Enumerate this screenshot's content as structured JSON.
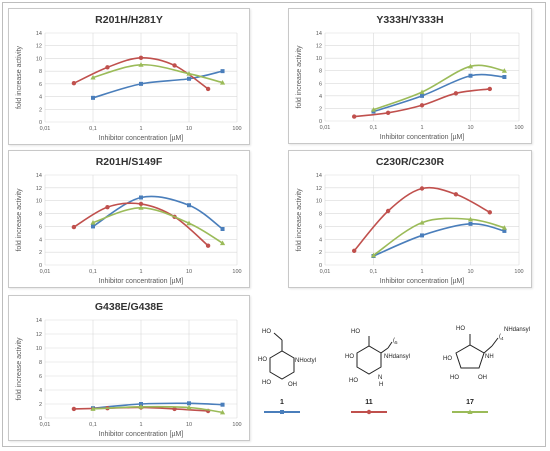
{
  "chart_data": [
    {
      "type": "line",
      "title": "R201H/H281Y",
      "xlabel": "Inhibitor concentration [µM]",
      "ylabel": "fold increase activity",
      "xscale": "log",
      "xlim": [
        0.01,
        100
      ],
      "ylim": [
        0,
        14
      ],
      "xticks": [
        "0,01",
        "0,1",
        "1",
        "10",
        "100"
      ],
      "yticks": [
        "0",
        "2",
        "4",
        "6",
        "8",
        "10",
        "12",
        "14"
      ],
      "grid": true,
      "series": [
        {
          "compound": "1",
          "color": "#4a7ebb",
          "marker": "square",
          "x": [
            0.1,
            1,
            10,
            50
          ],
          "y": [
            3.8,
            6.0,
            6.8,
            8.0
          ]
        },
        {
          "compound": "11",
          "color": "#c0504d",
          "marker": "circle",
          "x": [
            0.04,
            0.2,
            1,
            5,
            25
          ],
          "y": [
            6.1,
            8.6,
            10.1,
            8.9,
            5.2
          ]
        },
        {
          "compound": "17",
          "color": "#9bbb59",
          "marker": "triangle",
          "x": [
            0.1,
            1,
            10,
            50
          ],
          "y": [
            7.0,
            9.0,
            7.6,
            6.2
          ]
        }
      ]
    },
    {
      "type": "line",
      "title": "Y333H/Y333H",
      "xlabel": "Inhibitor concentration [µM]",
      "ylabel": "fold increase activity",
      "xscale": "log",
      "xlim": [
        0.01,
        100
      ],
      "ylim": [
        0,
        14
      ],
      "xticks": [
        "0,01",
        "0,1",
        "1",
        "10",
        "100"
      ],
      "yticks": [
        "0",
        "2",
        "4",
        "6",
        "8",
        "10",
        "12",
        "14"
      ],
      "grid": true,
      "series": [
        {
          "compound": "1",
          "color": "#4a7ebb",
          "marker": "square",
          "x": [
            0.1,
            1,
            10,
            50
          ],
          "y": [
            1.5,
            4.0,
            7.2,
            7.0
          ]
        },
        {
          "compound": "11",
          "color": "#c0504d",
          "marker": "circle",
          "x": [
            0.04,
            0.2,
            1,
            5,
            25
          ],
          "y": [
            0.7,
            1.3,
            2.5,
            4.4,
            5.1
          ]
        },
        {
          "compound": "17",
          "color": "#9bbb59",
          "marker": "triangle",
          "x": [
            0.1,
            1,
            10,
            50
          ],
          "y": [
            1.8,
            4.6,
            8.7,
            8.0
          ]
        }
      ]
    },
    {
      "type": "line",
      "title": "R201H/S149F",
      "xlabel": "Inhibitor concentration [µM]",
      "ylabel": "fold increase activity",
      "xscale": "log",
      "xlim": [
        0.01,
        100
      ],
      "ylim": [
        0,
        14
      ],
      "xticks": [
        "0,01",
        "0,1",
        "1",
        "10",
        "100"
      ],
      "yticks": [
        "0",
        "2",
        "4",
        "6",
        "8",
        "10",
        "12",
        "14"
      ],
      "grid": true,
      "series": [
        {
          "compound": "1",
          "color": "#4a7ebb",
          "marker": "square",
          "x": [
            0.1,
            1,
            10,
            50
          ],
          "y": [
            6.0,
            10.5,
            9.3,
            5.6
          ]
        },
        {
          "compound": "11",
          "color": "#c0504d",
          "marker": "circle",
          "x": [
            0.04,
            0.2,
            1,
            5,
            25
          ],
          "y": [
            5.9,
            9.0,
            9.5,
            7.5,
            3.0
          ]
        },
        {
          "compound": "17",
          "color": "#9bbb59",
          "marker": "triangle",
          "x": [
            0.1,
            1,
            10,
            50
          ],
          "y": [
            6.6,
            8.9,
            6.5,
            3.4
          ]
        }
      ]
    },
    {
      "type": "line",
      "title": "C230R/C230R",
      "xlabel": "Inhibitor concentration [µM]",
      "ylabel": "fold increase activity",
      "xscale": "log",
      "xlim": [
        0.01,
        100
      ],
      "ylim": [
        0,
        14
      ],
      "xticks": [
        "0,01",
        "0,1",
        "1",
        "10",
        "100"
      ],
      "yticks": [
        "0",
        "2",
        "4",
        "6",
        "8",
        "10",
        "12",
        "14"
      ],
      "grid": true,
      "series": [
        {
          "compound": "1",
          "color": "#4a7ebb",
          "marker": "square",
          "x": [
            0.1,
            1,
            10,
            50
          ],
          "y": [
            1.4,
            4.6,
            6.4,
            5.3
          ]
        },
        {
          "compound": "11",
          "color": "#c0504d",
          "marker": "circle",
          "x": [
            0.04,
            0.2,
            1,
            5,
            25
          ],
          "y": [
            2.2,
            8.4,
            11.9,
            11.0,
            8.2
          ]
        },
        {
          "compound": "17",
          "color": "#9bbb59",
          "marker": "triangle",
          "x": [
            0.1,
            1,
            10,
            50
          ],
          "y": [
            1.5,
            6.6,
            7.1,
            5.8
          ]
        }
      ]
    },
    {
      "type": "line",
      "title": "G438E/G438E",
      "xlabel": "Inhibitor concentration [µM]",
      "ylabel": "fold increase activity",
      "xscale": "log",
      "xlim": [
        0.01,
        100
      ],
      "ylim": [
        0,
        14
      ],
      "xticks": [
        "0,01",
        "0,1",
        "1",
        "10",
        "100"
      ],
      "yticks": [
        "0",
        "2",
        "4",
        "6",
        "8",
        "10",
        "12",
        "14"
      ],
      "grid": true,
      "series": [
        {
          "compound": "1",
          "color": "#4a7ebb",
          "marker": "square",
          "x": [
            0.1,
            1,
            10,
            50
          ],
          "y": [
            1.4,
            2.0,
            2.1,
            1.9
          ]
        },
        {
          "compound": "11",
          "color": "#c0504d",
          "marker": "circle",
          "x": [
            0.04,
            0.2,
            1,
            5,
            25
          ],
          "y": [
            1.3,
            1.4,
            1.5,
            1.3,
            1.0
          ]
        },
        {
          "compound": "17",
          "color": "#9bbb59",
          "marker": "triangle",
          "x": [
            0.1,
            1,
            10,
            50
          ],
          "y": [
            1.3,
            1.6,
            1.5,
            0.8
          ]
        }
      ]
    }
  ],
  "legend": {
    "compounds": [
      {
        "label": "1",
        "color": "#4a7ebb",
        "marker": "square",
        "substituent": "NHoctyl"
      },
      {
        "label": "11",
        "color": "#c0504d",
        "marker": "circle",
        "substituent": "NHdansyl"
      },
      {
        "label": "17",
        "color": "#9bbb59",
        "marker": "triangle",
        "substituent": "NHdansyl"
      }
    ],
    "atom_labels": {
      "ho": "HO",
      "oh": "OH",
      "nh": "NH",
      "n": "N",
      "h": "H"
    },
    "chain_label": "(",
    "chain_sub": "5",
    "chain_sub17": "4"
  }
}
